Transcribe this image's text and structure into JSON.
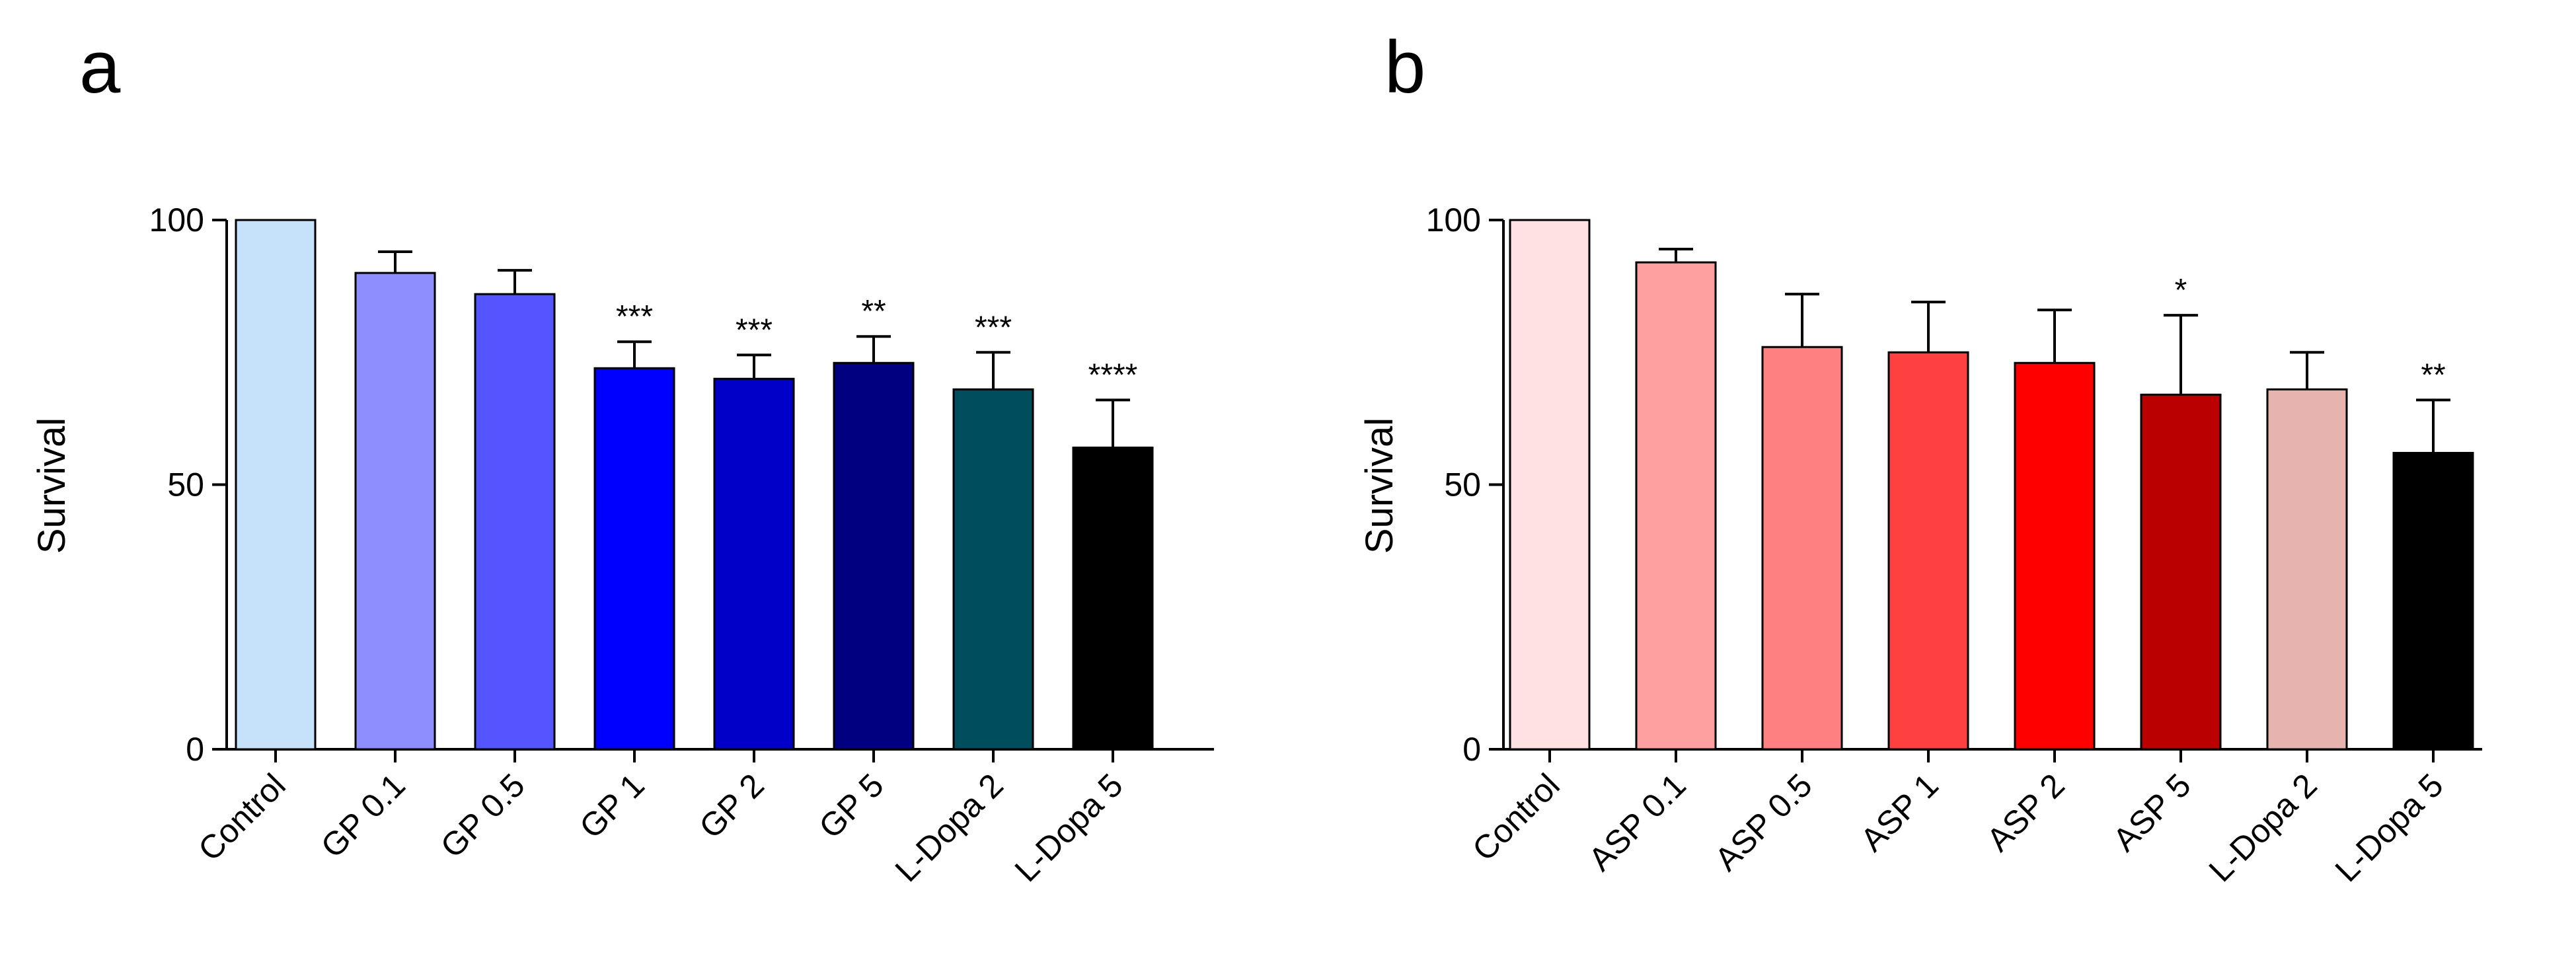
{
  "chart_data": [
    {
      "panel": "a",
      "type": "bar",
      "ylabel": "Survival",
      "ylim": [
        0,
        100
      ],
      "yticks": [
        "0",
        "50",
        "100"
      ],
      "categories": [
        "Control",
        "GP 0.1",
        "GP 0.5",
        "GP 1",
        "GP 2",
        "GP 5",
        "L-Dopa 2",
        "L-Dopa 5"
      ],
      "values": [
        100,
        90,
        86,
        72,
        70,
        73,
        68,
        57
      ],
      "errors": [
        0,
        4,
        4.5,
        5,
        4.5,
        5,
        7,
        9
      ],
      "significance": [
        "",
        "",
        "",
        "***",
        "***",
        "**",
        "***",
        "****"
      ],
      "colors": [
        "#c6e2fa",
        "#8e8eff",
        "#5555ff",
        "#0000ff",
        "#0000c8",
        "#000080",
        "#004d5e",
        "#000000"
      ]
    },
    {
      "panel": "b",
      "type": "bar",
      "ylabel": "Survival",
      "ylim": [
        0,
        100
      ],
      "yticks": [
        "0",
        "50",
        "100"
      ],
      "categories": [
        "Control",
        "ASP  0.1",
        "ASP 0.5",
        "ASP 1",
        "ASP 2",
        "ASP 5",
        "L-Dopa 2",
        "L-Dopa 5"
      ],
      "values": [
        100,
        92,
        76,
        75,
        73,
        67,
        68,
        56
      ],
      "errors": [
        0,
        2.5,
        10,
        9.5,
        10,
        15,
        7,
        10
      ],
      "significance": [
        "",
        "",
        "",
        "",
        "",
        "*",
        "",
        "**"
      ],
      "colors": [
        "#ffe0e3",
        "#ffa0a0",
        "#ff8080",
        "#ff4040",
        "#ff0000",
        "#bb0000",
        "#e6b3ae",
        "#000000"
      ]
    }
  ]
}
